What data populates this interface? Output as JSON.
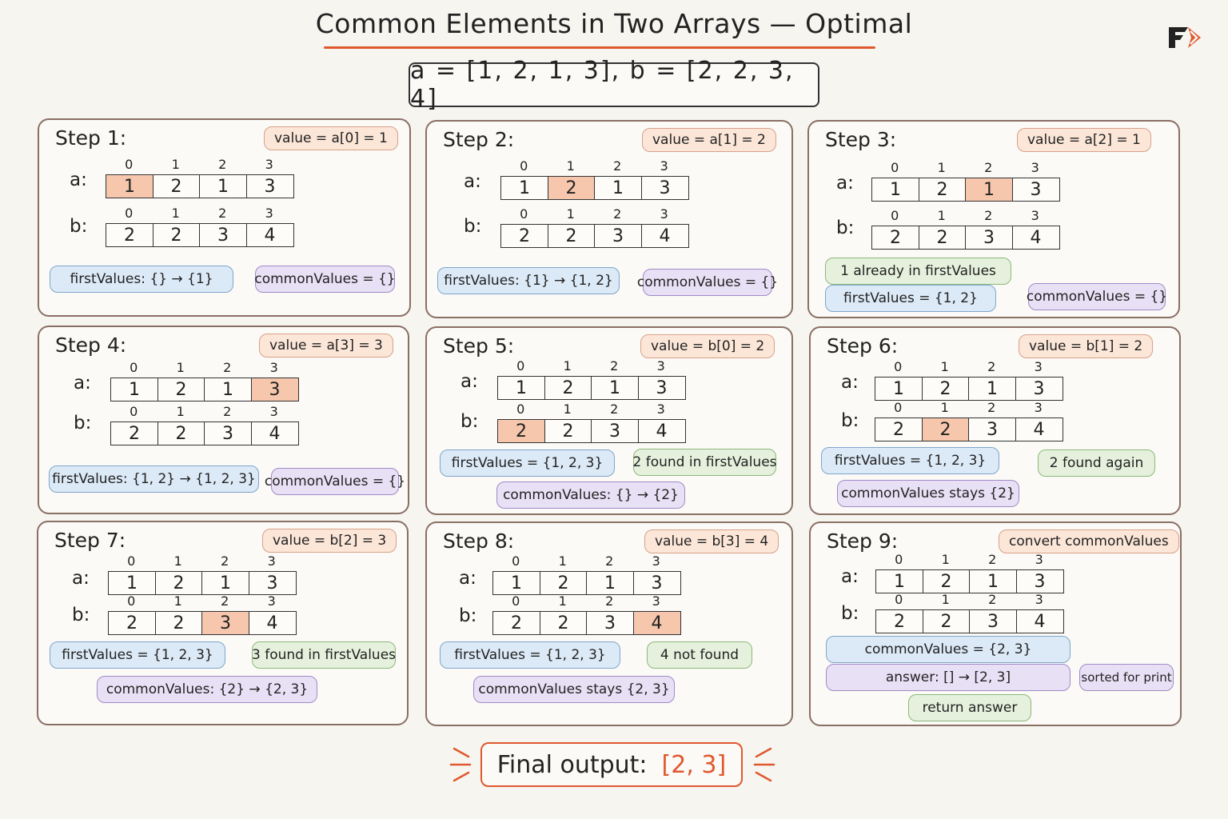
{
  "title": "Common Elements in Two Arrays — Optimal",
  "arrays_line": "a = [1, 2, 1, 3],  b = [2, 2, 3, 4]",
  "array_labels": {
    "a": "a:",
    "b": "b:"
  },
  "indices": [
    "0",
    "1",
    "2",
    "3"
  ],
  "array_a": [
    "1",
    "2",
    "1",
    "3"
  ],
  "array_b": [
    "2",
    "2",
    "3",
    "4"
  ],
  "colors": {
    "accent": "#e0582e",
    "highlight": "#f6c7ac",
    "blue": "#dce9f6",
    "purple": "#e8e0f5",
    "green": "#e5f1dd",
    "tag": "#fbe6d8"
  },
  "steps": [
    {
      "title": "Step 1:",
      "tag": "value = a[0] = 1",
      "hl_a": 0,
      "hl_b": -1,
      "chips": [
        "firstValues: {} → {1}",
        "commonValues = {}"
      ]
    },
    {
      "title": "Step 2:",
      "tag": "value = a[1] = 2",
      "hl_a": 1,
      "hl_b": -1,
      "chips": [
        "firstValues: {1} → {1, 2}",
        "commonValues = {}"
      ]
    },
    {
      "title": "Step 3:",
      "tag": "value = a[2] = 1",
      "hl_a": 2,
      "hl_b": -1,
      "chips": [
        "1 already in firstValues",
        "firstValues = {1, 2}",
        "commonValues = {}"
      ]
    },
    {
      "title": "Step 4:",
      "tag": "value = a[3] = 3",
      "hl_a": 3,
      "hl_b": -1,
      "chips": [
        "firstValues: {1, 2} → {1, 2, 3}",
        "commonValues = {}"
      ]
    },
    {
      "title": "Step 5:",
      "tag": "value = b[0] = 2",
      "hl_a": -1,
      "hl_b": 0,
      "chips": [
        "firstValues = {1, 2, 3}",
        "2 found in firstValues",
        "commonValues: {} → {2}"
      ]
    },
    {
      "title": "Step 6:",
      "tag": "value = b[1] = 2",
      "hl_a": -1,
      "hl_b": 1,
      "chips": [
        "firstValues = {1, 2, 3}",
        "2 found again",
        "commonValues stays {2}"
      ]
    },
    {
      "title": "Step 7:",
      "tag": "value = b[2] = 3",
      "hl_a": -1,
      "hl_b": 2,
      "chips": [
        "firstValues = {1, 2, 3}",
        "3 found in firstValues",
        "commonValues: {2} → {2, 3}"
      ]
    },
    {
      "title": "Step 8:",
      "tag": "value = b[3] = 4",
      "hl_a": -1,
      "hl_b": 3,
      "chips": [
        "firstValues = {1, 2, 3}",
        "4 not found",
        "commonValues stays {2, 3}"
      ]
    },
    {
      "title": "Step 9:",
      "tag": "convert commonValues",
      "hl_a": -1,
      "hl_b": -1,
      "chips": [
        "commonValues = {2, 3}",
        "answer: [] → [2, 3]",
        "sorted for print",
        "return answer"
      ]
    }
  ],
  "final": {
    "label": "Final output:",
    "value": "[2, 3]"
  }
}
